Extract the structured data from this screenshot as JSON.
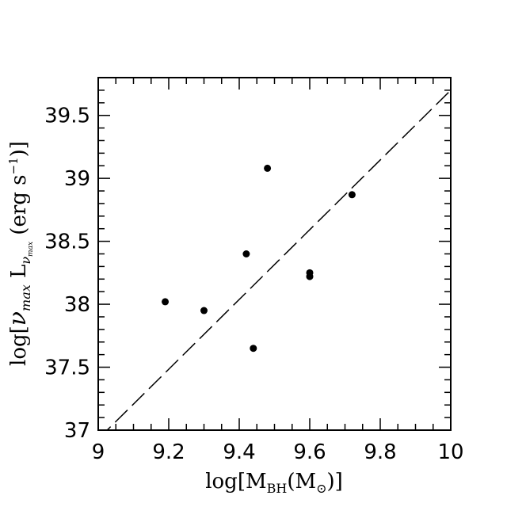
{
  "chart_data": {
    "type": "scatter",
    "xlabel": "log[M_BH(M_⊙)]",
    "ylabel": "log[ν_max L_ν_max (erg s⁻¹)]",
    "xlim": [
      9,
      10
    ],
    "ylim": [
      37,
      39.8
    ],
    "x_ticks": [
      "9",
      "9.2",
      "9.4",
      "9.6",
      "9.8",
      "10"
    ],
    "y_ticks": [
      "37",
      "37.5",
      "38",
      "38.5",
      "39",
      "39.5"
    ],
    "grid": false,
    "points": [
      {
        "x": 9.19,
        "y": 38.02
      },
      {
        "x": 9.3,
        "y": 37.95
      },
      {
        "x": 9.42,
        "y": 38.4
      },
      {
        "x": 9.44,
        "y": 37.65
      },
      {
        "x": 9.48,
        "y": 39.08
      },
      {
        "x": 9.6,
        "y": 38.25
      },
      {
        "x": 9.6,
        "y": 38.22
      },
      {
        "x": 9.72,
        "y": 38.87
      }
    ],
    "fit_line": {
      "style": "dashed",
      "x": [
        9.0,
        10.0
      ],
      "y": [
        36.93,
        39.7
      ]
    }
  }
}
